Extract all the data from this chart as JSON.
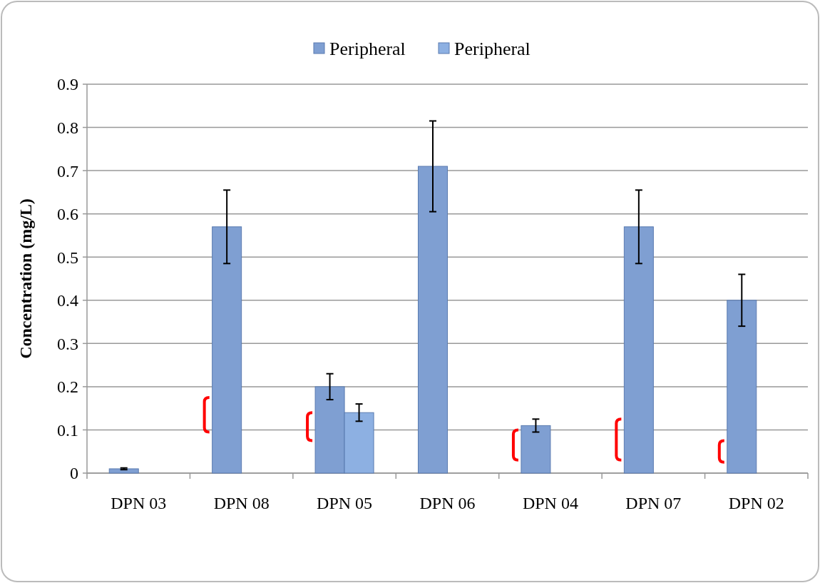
{
  "chart_data": {
    "type": "bar",
    "ylabel": "Concentration (mg/L)",
    "categories": [
      "DPN 03",
      "DPN 08",
      "DPN 05",
      "DPN 06",
      "DPN 04",
      "DPN 07",
      "DPN 02"
    ],
    "series": [
      {
        "name": "Peripheral",
        "color": "#7f9fd2",
        "values": [
          0.01,
          0.57,
          0.2,
          0.71,
          0.11,
          0.57,
          0.4
        ],
        "errors": [
          0.002,
          0.085,
          0.03,
          0.105,
          0.015,
          0.085,
          0.06
        ]
      },
      {
        "name": "Peripheral",
        "color": "#8db0e2",
        "values": [
          null,
          null,
          0.14,
          null,
          null,
          null,
          null
        ],
        "errors": [
          null,
          null,
          0.02,
          null,
          null,
          null,
          null
        ]
      }
    ],
    "ylim": [
      0,
      0.9
    ],
    "yticks": [
      0,
      0.1,
      0.2,
      0.3,
      0.4,
      0.5,
      0.6,
      0.7,
      0.8,
      0.9
    ],
    "grid": "y",
    "legend": "top"
  }
}
